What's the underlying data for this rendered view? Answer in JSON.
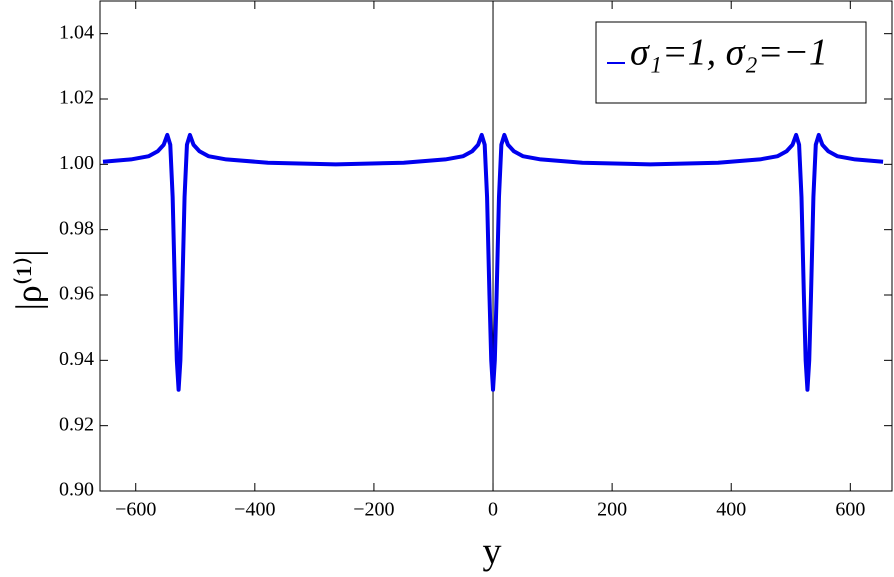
{
  "chart_data": {
    "type": "line",
    "x_label": "y",
    "y_label": "|ρ⁽¹⁾|",
    "xlim": [
      -660,
      670
    ],
    "ylim": [
      0.9,
      1.05
    ],
    "xticks": [
      {
        "value": -600,
        "label": "−600"
      },
      {
        "value": -400,
        "label": "−400"
      },
      {
        "value": -200,
        "label": "−200"
      },
      0,
      200,
      400,
      600
    ],
    "yticks": [
      {
        "value": 0.9,
        "label": "0.90"
      },
      {
        "value": 0.92,
        "label": "0.92"
      },
      {
        "value": 0.94,
        "label": "0.94"
      },
      {
        "value": 0.96,
        "label": "0.96"
      },
      {
        "value": 0.98,
        "label": "0.98"
      },
      {
        "value": 1.0,
        "label": "1.00"
      },
      {
        "value": 1.02,
        "label": "1.02"
      },
      {
        "value": 1.04,
        "label": "1.04"
      }
    ],
    "legend": "upper right",
    "x": [
      -655,
      -608,
      -578,
      -563,
      -553,
      -547,
      -542,
      -538,
      -534,
      -531,
      -528,
      -525,
      -522,
      -518,
      -514,
      -509,
      -503,
      -493,
      -478,
      -448,
      -378,
      -264,
      -150,
      -80,
      -50,
      -35,
      -25,
      -19,
      -14,
      -10,
      -6,
      -3,
      0,
      3,
      6,
      10,
      14,
      19,
      25,
      35,
      50,
      80,
      150,
      264,
      378,
      448,
      478,
      493,
      503,
      509,
      514,
      518,
      522,
      525,
      528,
      531,
      534,
      538,
      542,
      547,
      553,
      563,
      578,
      608,
      655
    ],
    "series": [
      {
        "name": "σ₁=1, σ₂=−1",
        "color": "#0000ee",
        "values": [
          1.0008,
          1.0015,
          1.0025,
          1.004,
          1.006,
          1.009,
          1.006,
          0.99,
          0.96,
          0.94,
          0.931,
          0.94,
          0.96,
          0.99,
          1.006,
          1.009,
          1.006,
          1.004,
          1.0025,
          1.0015,
          1.0005,
          1.0,
          1.0005,
          1.0015,
          1.0025,
          1.004,
          1.006,
          1.009,
          1.006,
          0.99,
          0.96,
          0.94,
          0.931,
          0.94,
          0.96,
          0.99,
          1.006,
          1.009,
          1.006,
          1.004,
          1.0025,
          1.0015,
          1.0005,
          1.0,
          1.0005,
          1.0015,
          1.0025,
          1.004,
          1.006,
          1.009,
          1.006,
          0.99,
          0.96,
          0.94,
          0.931,
          0.94,
          0.96,
          0.99,
          1.006,
          1.009,
          1.006,
          1.004,
          1.0025,
          1.0015,
          1.0008
        ]
      }
    ]
  }
}
